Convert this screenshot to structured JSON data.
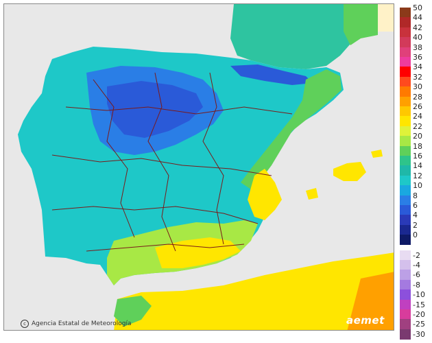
{
  "credit": "Agencia Estatal de Meteorología",
  "logo_text": "aemet",
  "legend": {
    "positive": [
      {
        "label": "50",
        "color": "#8b3a1a"
      },
      {
        "label": "44",
        "color": "#b02828"
      },
      {
        "label": "42",
        "color": "#c8323c"
      },
      {
        "label": "40",
        "color": "#d23a5a"
      },
      {
        "label": "38",
        "color": "#e0407a"
      },
      {
        "label": "36",
        "color": "#ee3c9e"
      },
      {
        "label": "34",
        "color": "#ff0000"
      },
      {
        "label": "32",
        "color": "#ff4a1e"
      },
      {
        "label": "30",
        "color": "#ff7a00"
      },
      {
        "label": "28",
        "color": "#ffa000"
      },
      {
        "label": "26",
        "color": "#ffc800"
      },
      {
        "label": "24",
        "color": "#ffe600"
      },
      {
        "label": "22",
        "color": "#dff23a"
      },
      {
        "label": "20",
        "color": "#a8e845"
      },
      {
        "label": "18",
        "color": "#5fd05a"
      },
      {
        "label": "16",
        "color": "#2ec48a"
      },
      {
        "label": "14",
        "color": "#1fb8a8"
      },
      {
        "label": "12",
        "color": "#1ec8c8"
      },
      {
        "label": "10",
        "color": "#1aa8e0"
      },
      {
        "label": "8",
        "color": "#2a7ee6"
      },
      {
        "label": "6",
        "color": "#2a5ad8"
      },
      {
        "label": "4",
        "color": "#2a3ab8"
      },
      {
        "label": "2",
        "color": "#1a2890"
      },
      {
        "label": "0",
        "color": "#0e1a66"
      }
    ],
    "negative": [
      {
        "label": "-2",
        "color": "#e8dcf2"
      },
      {
        "label": "-4",
        "color": "#d4c0ec"
      },
      {
        "label": "-6",
        "color": "#bca0e6"
      },
      {
        "label": "-8",
        "color": "#a47ae0"
      },
      {
        "label": "-10",
        "color": "#8c50dc"
      },
      {
        "label": "-15",
        "color": "#c040c0"
      },
      {
        "label": "-20",
        "color": "#d83c9c"
      },
      {
        "label": "-25",
        "color": "#a04080"
      },
      {
        "label": "-30",
        "color": "#7a3a70"
      }
    ]
  }
}
